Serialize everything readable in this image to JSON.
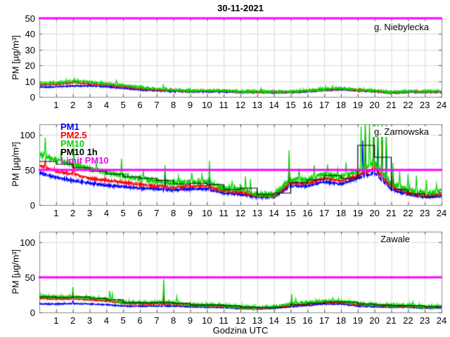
{
  "figure": {
    "title": "30-11-2021",
    "xlabel": "Godzina UTC",
    "ylabel": "PM [µg/m³]",
    "background": "#ffffff",
    "grid_color": "#d9d9d9",
    "frame_color": "#8a8a8a",
    "tick_color": "#555555"
  },
  "legend": {
    "position": "top-left-of-middle-panel",
    "entries": [
      {
        "label": "PM1",
        "color": "#0000ff"
      },
      {
        "label": "PM2.5",
        "color": "#ff0000"
      },
      {
        "label": "PM10",
        "color": "#00d400"
      },
      {
        "label": "PM10 1h",
        "color": "#000000"
      },
      {
        "label": "Limit PM10",
        "color": "#ff00ff"
      }
    ]
  },
  "chart_data": [
    {
      "type": "line",
      "station": "g. Niebylecka",
      "xlabel": "Godzina UTC",
      "ylabel": "PM [µg/m³]",
      "xlim": [
        0,
        24
      ],
      "xticks": [
        1,
        2,
        3,
        4,
        5,
        6,
        7,
        8,
        9,
        10,
        11,
        12,
        13,
        14,
        15,
        16,
        17,
        18,
        19,
        20,
        21,
        22,
        23,
        24
      ],
      "ylim": [
        0,
        50
      ],
      "yticks": [
        0,
        10,
        20,
        30,
        40,
        50
      ],
      "grid": true,
      "limit_pm10": {
        "value": 50,
        "color": "#ff00ff",
        "width": 3
      },
      "hours": [
        0,
        1,
        2,
        3,
        4,
        5,
        6,
        7,
        8,
        9,
        10,
        11,
        12,
        13,
        14,
        15,
        16,
        17,
        18,
        19,
        20,
        21,
        22,
        23,
        24
      ],
      "series": [
        {
          "name": "PM1",
          "color": "#0000ff",
          "noise": 0.45,
          "seed": 11,
          "hourly": [
            6,
            6.5,
            7,
            7,
            6.5,
            5.5,
            4.5,
            4,
            3.6,
            3.3,
            3.3,
            3.3,
            3,
            3,
            2.8,
            3,
            3.4,
            4.2,
            4.6,
            4,
            3.5,
            2.5,
            3,
            3,
            3
          ],
          "spikes": []
        },
        {
          "name": "PM2.5",
          "color": "#ff0000",
          "noise": 0.45,
          "seed": 12,
          "hourly": [
            7.5,
            8,
            9,
            8.5,
            7.5,
            6.5,
            5.2,
            4.4,
            4,
            3.6,
            3.6,
            3.6,
            3.2,
            3.2,
            3,
            3.2,
            3.6,
            4.5,
            5,
            4.2,
            3.7,
            2.8,
            3.2,
            3.2,
            3.2
          ],
          "spikes": [
            [
              2.1,
              10.5
            ]
          ]
        },
        {
          "name": "PM10",
          "color": "#00d400",
          "noise": 0.7,
          "seed": 13,
          "hourly": [
            8.5,
            9,
            10,
            9.5,
            8.5,
            7.5,
            6,
            5,
            4.5,
            4,
            4,
            4,
            3.5,
            3.5,
            3.2,
            3.5,
            4,
            5,
            5.5,
            4.5,
            4,
            3,
            3.5,
            3.5,
            3.5
          ],
          "spikes": [
            [
              2.1,
              11.8
            ],
            [
              4.6,
              10.5
            ],
            [
              7.4,
              7.5
            ],
            [
              17.5,
              7
            ]
          ]
        }
      ],
      "steps_series": null
    },
    {
      "type": "line",
      "station": "g. Zarnowska",
      "xlabel": "Godzina UTC",
      "ylabel": "PM [µg/m³]",
      "xlim": [
        0,
        24
      ],
      "xticks": [
        1,
        2,
        3,
        4,
        5,
        6,
        7,
        8,
        9,
        10,
        11,
        12,
        13,
        14,
        15,
        16,
        17,
        18,
        19,
        20,
        21,
        22,
        23,
        24
      ],
      "ylim": [
        0,
        115
      ],
      "yticks": [
        0,
        50,
        100
      ],
      "grid": true,
      "limit_pm10": {
        "value": 50,
        "color": "#ff00ff",
        "width": 3
      },
      "hours": [
        0,
        1,
        2,
        3,
        4,
        5,
        6,
        7,
        8,
        9,
        10,
        11,
        12,
        13,
        14,
        15,
        16,
        17,
        18,
        19,
        20,
        21,
        22,
        23,
        24
      ],
      "series": [
        {
          "name": "PM1",
          "color": "#0000ff",
          "noise": 1.8,
          "seed": 21,
          "hourly": [
            46,
            39,
            35,
            31,
            28,
            26,
            24,
            23,
            21,
            23,
            23,
            17,
            15,
            11.5,
            11.5,
            27,
            27,
            33,
            30,
            38,
            46,
            22,
            15,
            11,
            14
          ],
          "spikes": [
            [
              7.5,
              49
            ],
            [
              10.15,
              40
            ],
            [
              14.9,
              46
            ],
            [
              19.3,
              92
            ],
            [
              19.45,
              98
            ],
            [
              19.95,
              112
            ],
            [
              20.2,
              100
            ],
            [
              20.45,
              108
            ],
            [
              20.7,
              90
            ],
            [
              21.1,
              45
            ]
          ]
        },
        {
          "name": "PM2.5",
          "color": "#ff0000",
          "noise": 1.8,
          "seed": 22,
          "hourly": [
            56,
            48,
            44,
            38,
            35,
            32,
            29,
            27,
            25,
            27,
            27,
            20,
            18,
            13,
            13,
            31,
            31,
            38,
            34,
            42,
            52,
            26,
            18,
            13,
            17
          ],
          "spikes": [
            [
              0.35,
              64
            ],
            [
              2.05,
              60
            ],
            [
              14.9,
              52
            ],
            [
              19.45,
              105
            ],
            [
              19.95,
              118
            ],
            [
              20.45,
              112
            ],
            [
              21.1,
              50
            ]
          ]
        },
        {
          "name": "PM10",
          "color": "#00d400",
          "noise": 3.2,
          "seed": 23,
          "hourly": [
            72,
            64,
            58,
            52,
            46,
            42,
            38,
            34,
            31,
            33,
            33,
            24,
            22,
            15,
            15,
            36,
            36,
            44,
            40,
            48,
            60,
            30,
            22,
            16,
            20
          ],
          "spikes": [
            [
              0.35,
              96
            ],
            [
              1.3,
              78
            ],
            [
              2.05,
              82
            ],
            [
              3.4,
              60
            ],
            [
              4.9,
              66
            ],
            [
              6.2,
              50
            ],
            [
              7.5,
              57
            ],
            [
              8.3,
              42
            ],
            [
              9.1,
              46
            ],
            [
              9.7,
              44
            ],
            [
              10.15,
              63
            ],
            [
              11.5,
              35
            ],
            [
              12.3,
              41
            ],
            [
              12.6,
              37
            ],
            [
              14.9,
              78
            ],
            [
              15.5,
              52
            ],
            [
              16.4,
              57
            ],
            [
              17.2,
              58
            ],
            [
              17.8,
              52
            ],
            [
              18.3,
              61
            ],
            [
              19.2,
              112
            ],
            [
              19.45,
              128
            ],
            [
              19.7,
              118
            ],
            [
              19.95,
              135
            ],
            [
              20.2,
              122
            ],
            [
              20.45,
              140
            ],
            [
              20.7,
              115
            ],
            [
              21.1,
              60
            ],
            [
              21.5,
              48
            ],
            [
              22.0,
              44
            ],
            [
              22.5,
              42
            ],
            [
              23.1,
              36
            ],
            [
              23.7,
              30
            ]
          ]
        }
      ],
      "steps_series": {
        "name": "PM10 1h",
        "color": "#000000",
        "values": [
          62,
          58,
          53,
          48,
          44,
          40,
          38,
          35,
          30,
          31,
          29,
          22,
          24,
          15,
          17,
          32,
          36,
          42,
          38,
          85,
          68,
          22,
          16,
          11
        ]
      }
    },
    {
      "type": "line",
      "station": "Zawale",
      "xlabel": "Godzina UTC",
      "ylabel": "PM [µg/m³]",
      "xlim": [
        0,
        24
      ],
      "xticks": [
        1,
        2,
        3,
        4,
        5,
        6,
        7,
        8,
        9,
        10,
        11,
        12,
        13,
        14,
        15,
        16,
        17,
        18,
        19,
        20,
        21,
        22,
        23,
        24
      ],
      "ylim": [
        0,
        115
      ],
      "yticks": [
        0,
        50,
        100
      ],
      "grid": true,
      "limit_pm10": {
        "value": 50,
        "color": "#ff00ff",
        "width": 3
      },
      "hours": [
        0,
        1,
        2,
        3,
        4,
        5,
        6,
        7,
        8,
        9,
        10,
        11,
        12,
        13,
        14,
        15,
        16,
        17,
        18,
        19,
        20,
        21,
        22,
        23,
        24
      ],
      "series": [
        {
          "name": "PM1",
          "color": "#0000ff",
          "noise": 0.8,
          "seed": 31,
          "hourly": [
            12,
            12,
            12.5,
            12,
            11,
            9,
            9,
            9,
            9,
            8,
            7.5,
            7,
            5.5,
            5,
            6,
            8,
            10,
            12,
            12,
            9,
            8,
            7.5,
            7.5,
            6,
            7
          ],
          "spikes": [
            [
              2.0,
              17
            ],
            [
              7.42,
              19
            ],
            [
              15.05,
              13
            ]
          ]
        },
        {
          "name": "PM2.5",
          "color": "#ff0000",
          "noise": 1.0,
          "seed": 32,
          "hourly": [
            20,
            19,
            19,
            18,
            16.5,
            13,
            12,
            12,
            12,
            10,
            9.5,
            9,
            7,
            6,
            7,
            10,
            12,
            14,
            14,
            11,
            10,
            9,
            9,
            7,
            8
          ],
          "spikes": [
            [
              2.0,
              27
            ],
            [
              7.42,
              31
            ],
            [
              15.05,
              16
            ]
          ]
        },
        {
          "name": "PM10",
          "color": "#00d400",
          "noise": 1.8,
          "seed": 33,
          "hourly": [
            23,
            22,
            22,
            21,
            19,
            15,
            14,
            14.5,
            14,
            11,
            11,
            10,
            8,
            7,
            8,
            12,
            14,
            16,
            16,
            13,
            11,
            10,
            10,
            8,
            9
          ],
          "spikes": [
            [
              2.0,
              36
            ],
            [
              4.2,
              31
            ],
            [
              4.35,
              27
            ],
            [
              7.42,
              50
            ],
            [
              8.2,
              23
            ],
            [
              15.05,
              26
            ],
            [
              15.3,
              20
            ],
            [
              17.5,
              21
            ],
            [
              22.3,
              15
            ]
          ]
        }
      ],
      "steps_series": {
        "name": "PM10 1h",
        "color": "#000000",
        "values": [
          22,
          21,
          22,
          20,
          18,
          14,
          13.5,
          14,
          13,
          10.5,
          10.5,
          9.5,
          7.5,
          7,
          7.5,
          11,
          13,
          15,
          15,
          12,
          10.5,
          9.5,
          9.5,
          8
        ]
      }
    }
  ]
}
